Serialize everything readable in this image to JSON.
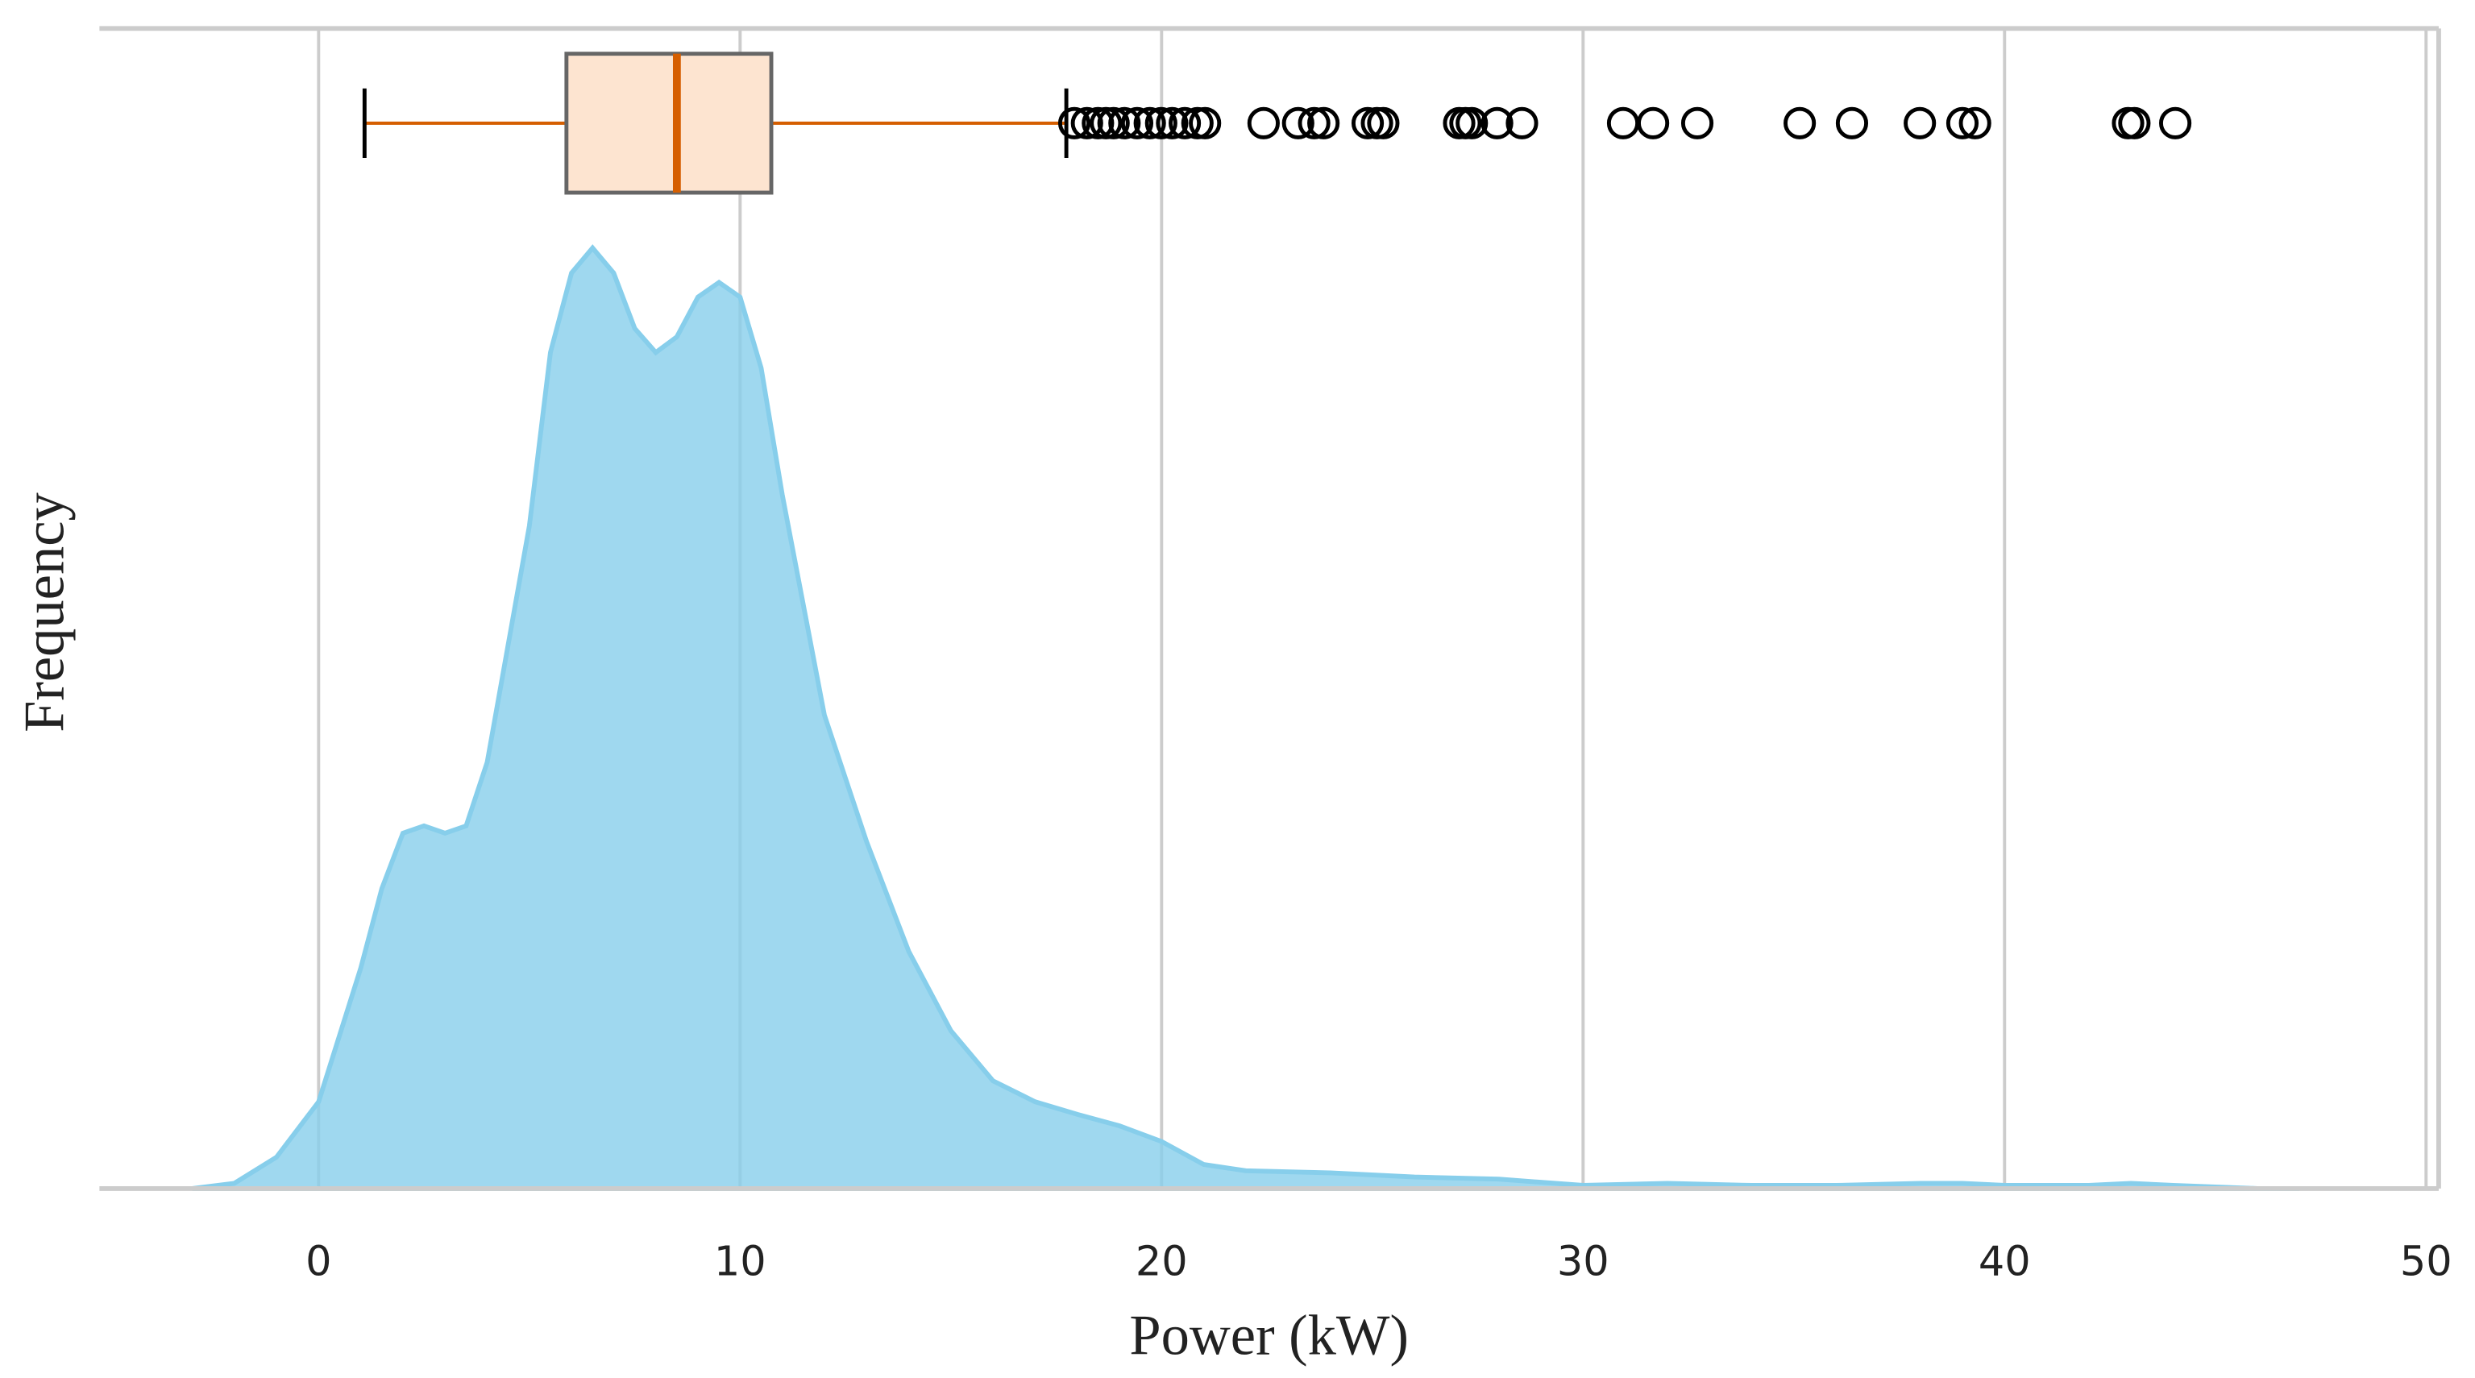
{
  "chart_data": {
    "type": "kde_box",
    "xlabel": "Power (kW)",
    "ylabel": "Frequency",
    "x": [
      -3,
      -2,
      -1,
      0,
      1,
      1.5,
      2,
      2.5,
      3,
      3.5,
      4,
      5,
      5.5,
      6,
      6.5,
      7,
      7.5,
      8,
      8.5,
      9,
      9.5,
      10,
      10.5,
      11,
      12,
      13,
      14,
      15,
      16,
      17,
      18,
      19,
      20,
      21,
      22,
      24,
      26,
      28,
      30,
      32,
      34,
      36,
      38,
      39,
      40,
      42,
      43,
      44,
      46,
      47
    ],
    "values": [
      0,
      0.0005,
      0.003,
      0.0083,
      0.0211,
      0.0287,
      0.034,
      0.0347,
      0.034,
      0.0347,
      0.0408,
      0.0634,
      0.08,
      0.0876,
      0.09,
      0.0876,
      0.0823,
      0.08,
      0.0815,
      0.0853,
      0.0867,
      0.0853,
      0.0785,
      0.0664,
      0.0453,
      0.0332,
      0.0227,
      0.0151,
      0.0103,
      0.0083,
      0.0071,
      0.006,
      0.0045,
      0.0023,
      0.0017,
      0.0015,
      0.0011,
      0.0009,
      0.0003,
      0.0005,
      0.0003,
      0.0003,
      0.0005,
      0.0005,
      0.0003,
      0.0003,
      0.0005,
      0.0003,
      0,
      0
    ],
    "color": "#87ceeb",
    "box": {
      "whislo": 1.09,
      "q1": 5.88,
      "med": 8.5,
      "q3": 10.74,
      "whishi": 17.74,
      "fliers": [
        17.93,
        18.23,
        18.49,
        18.68,
        18.86,
        19.12,
        19.42,
        19.72,
        19.99,
        20.25,
        20.55,
        20.85,
        21.03,
        22.42,
        23.24,
        23.62,
        23.84,
        24.89,
        25.11,
        25.26,
        27.06,
        27.21,
        27.36,
        27.96,
        28.55,
        30.95,
        31.66,
        32.71,
        35.14,
        36.38,
        37.99,
        39.0,
        39.3,
        42.93,
        43.08,
        44.05
      ],
      "color": "#fde4d0",
      "median_color": "#d55e00"
    },
    "xlim": [
      -5.2,
      50.3
    ],
    "xticks": [
      0,
      10,
      20,
      30,
      40,
      50
    ],
    "ylim": [
      0,
      0.111
    ],
    "grid": true
  }
}
